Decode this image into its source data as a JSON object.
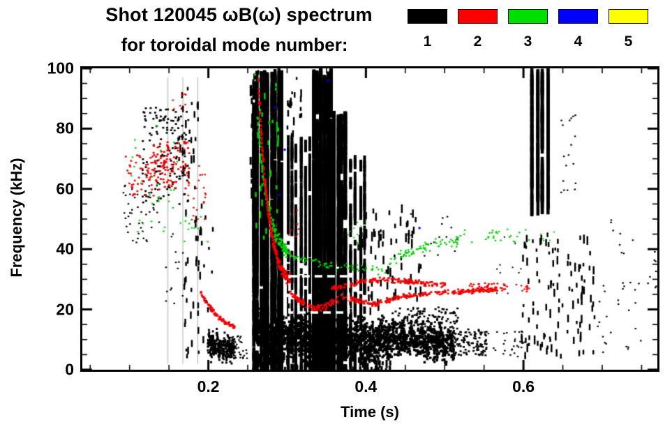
{
  "header": {
    "title_line1": "Shot 120045 ωB(ω) spectrum",
    "title_line2": "for toroidal mode number:"
  },
  "legend": {
    "entries": [
      {
        "label": "1",
        "color": "#000000"
      },
      {
        "label": "2",
        "color": "#ff0000"
      },
      {
        "label": "3",
        "color": "#00e000"
      },
      {
        "label": "4",
        "color": "#0000ff"
      },
      {
        "label": "5",
        "color": "#ffff00"
      }
    ]
  },
  "axes": {
    "xlabel": "Time (s)",
    "ylabel": "Frequency (kHz)",
    "xtick_labels": [
      "0.2",
      "0.4",
      "0.6"
    ],
    "ytick_labels": [
      "0",
      "20",
      "40",
      "60",
      "80",
      "100"
    ]
  },
  "chart_data": {
    "type": "scatter",
    "subtype": "spectrogram",
    "title": "Shot 120045 ωB(ω) spectrum for toroidal mode number",
    "xlabel": "Time (s)",
    "ylabel": "Frequency (kHz)",
    "xlim": [
      0.04,
      0.77
    ],
    "ylim": [
      0,
      100
    ],
    "xticks_labeled": [
      0.2,
      0.4,
      0.6
    ],
    "xticks_minor_step": 0.05,
    "yticks_labeled": [
      0,
      20,
      40,
      60,
      80,
      100
    ],
    "yticks_minor_step": 5,
    "grid": false,
    "legend_position": "top-right",
    "background_lines": [
      0.148,
      0.167,
      0.186
    ],
    "annotation_box": {
      "t0": 0.303,
      "t1": 0.378,
      "f0": 19,
      "f1": 31,
      "style": "dashed",
      "color": "#ffffff"
    },
    "series": [
      {
        "name": "n=1",
        "mode": 1,
        "color": "#000000",
        "clusters": [
          {
            "kind": "dots",
            "t": [
              0.09,
              0.14
            ],
            "f": [
              42,
              62
            ],
            "n": 45,
            "size": 2.5
          },
          {
            "kind": "dots",
            "t": [
              0.115,
              0.175
            ],
            "f": [
              55,
              88
            ],
            "n": 150,
            "size": 3
          },
          {
            "kind": "vdash",
            "t": [
              0.16,
              0.186
            ],
            "f": [
              58,
              96
            ],
            "n": 28,
            "len": [
              4,
              12
            ],
            "w": 2.5
          },
          {
            "kind": "vdash",
            "t": [
              0.168,
              0.205
            ],
            "f": [
              4,
              56
            ],
            "n": 45,
            "len": [
              4,
              11
            ],
            "w": 2.5
          },
          {
            "kind": "dots",
            "t": [
              0.145,
              0.168
            ],
            "f": [
              20,
              46
            ],
            "n": 14,
            "size": 2.5
          },
          {
            "kind": "band",
            "t": [
              0.198,
              0.232
            ],
            "f": [
              9,
              7
            ],
            "hw": 4,
            "n": 300,
            "size": 3
          },
          {
            "kind": "dots",
            "t": [
              0.225,
              0.248
            ],
            "f": [
              4,
              12
            ],
            "n": 40,
            "size": 2.5
          },
          {
            "kind": "vdash",
            "t": [
              0.252,
              0.262
            ],
            "f": [
              55,
              100
            ],
            "n": 35,
            "len": [
              5,
              16
            ],
            "w": 3
          },
          {
            "kind": "cols",
            "t": [
              0.255,
              0.296
            ],
            "f": [
              0,
              100
            ],
            "cols": 9,
            "per": 110,
            "w": 4.5,
            "len": [
              6,
              28
            ]
          },
          {
            "kind": "cols",
            "t": [
              0.298,
              0.331
            ],
            "f": [
              0,
              78
            ],
            "cols": 6,
            "per": 55,
            "w": 4,
            "len": [
              5,
              22
            ]
          },
          {
            "kind": "vdash",
            "t": [
              0.298,
              0.318
            ],
            "f": [
              76,
              100
            ],
            "n": 22,
            "len": [
              4,
              12
            ],
            "w": 2.5
          },
          {
            "kind": "cols",
            "t": [
              0.332,
              0.358
            ],
            "f": [
              0,
              100
            ],
            "cols": 6,
            "per": 150,
            "w": 5,
            "len": [
              8,
              30
            ]
          },
          {
            "kind": "cols",
            "t": [
              0.358,
              0.376
            ],
            "f": [
              0,
              86
            ],
            "cols": 4,
            "per": 100,
            "w": 5,
            "len": [
              8,
              28
            ]
          },
          {
            "kind": "cols",
            "t": [
              0.378,
              0.402
            ],
            "f": [
              0,
              72
            ],
            "cols": 4,
            "per": 45,
            "w": 4,
            "len": [
              5,
              20
            ]
          },
          {
            "kind": "band",
            "t": [
              0.258,
              0.43
            ],
            "f": [
              12,
              10
            ],
            "hw": 7,
            "n": 1700,
            "size": 3.5
          },
          {
            "kind": "vdash",
            "t": [
              0.26,
              0.43
            ],
            "f": [
              0,
              6
            ],
            "n": 130,
            "len": [
              4,
              12
            ],
            "w": 3
          },
          {
            "kind": "band",
            "t": [
              0.43,
              0.51
            ],
            "f": [
              11,
              9
            ],
            "hw": 5.5,
            "n": 620,
            "size": 3.5
          },
          {
            "kind": "dots",
            "t": [
              0.43,
              0.52
            ],
            "f": [
              14,
              21
            ],
            "n": 110,
            "size": 3
          },
          {
            "kind": "dots",
            "t": [
              0.505,
              0.552
            ],
            "f": [
              5,
              14
            ],
            "n": 110,
            "size": 3
          },
          {
            "kind": "vdash",
            "t": [
              0.385,
              0.47
            ],
            "f": [
              16,
              55
            ],
            "n": 85,
            "len": [
              4,
              14
            ],
            "w": 2.5
          },
          {
            "kind": "dots",
            "t": [
              0.445,
              0.52
            ],
            "f": [
              38,
              52
            ],
            "n": 14,
            "size": 2.5
          },
          {
            "kind": "dots",
            "t": [
              0.552,
              0.602
            ],
            "f": [
              4,
              13
            ],
            "n": 30,
            "size": 2.5
          },
          {
            "kind": "dots",
            "t": [
              0.56,
              0.6
            ],
            "f": [
              24,
              45
            ],
            "n": 10,
            "size": 2
          },
          {
            "kind": "vdash",
            "t": [
              0.596,
              0.69
            ],
            "f": [
              4,
              46
            ],
            "n": 110,
            "len": [
              4,
              13
            ],
            "w": 2.5
          },
          {
            "kind": "cols",
            "t": [
              0.608,
              0.634
            ],
            "f": [
              55,
              100
            ],
            "cols": 4,
            "per": 70,
            "w": 4.5,
            "len": [
              6,
              24
            ]
          },
          {
            "kind": "dots",
            "t": [
              0.645,
              0.668
            ],
            "f": [
              58,
              86
            ],
            "n": 18,
            "size": 2.5
          },
          {
            "kind": "dots",
            "t": [
              0.69,
              0.748
            ],
            "f": [
              6,
              30
            ],
            "n": 26,
            "size": 2.5
          },
          {
            "kind": "dots",
            "t": [
              0.705,
              0.742
            ],
            "f": [
              38,
              50
            ],
            "n": 8,
            "size": 2.5
          },
          {
            "kind": "dots",
            "t": [
              0.752,
              0.768
            ],
            "f": [
              25,
              46
            ],
            "n": 8,
            "size": 2.5
          }
        ]
      },
      {
        "name": "n=3",
        "mode": 3,
        "color": "#00d000",
        "clusters": [
          {
            "kind": "dots",
            "t": [
              0.1,
              0.165
            ],
            "f": [
              45,
              82
            ],
            "n": 30,
            "size": 2.5
          },
          {
            "kind": "dots",
            "t": [
              0.168,
              0.2
            ],
            "f": [
              38,
              52
            ],
            "n": 10,
            "size": 2.5
          },
          {
            "kind": "chirp",
            "t": [
              0.257,
              0.3
            ],
            "f": [
              100,
              36
            ],
            "k": 3.0,
            "jit": 3,
            "n": 130,
            "size": 3
          },
          {
            "kind": "vdash",
            "t": [
              0.258,
              0.288
            ],
            "f": [
              42,
              96
            ],
            "n": 30,
            "len": [
              4,
              10
            ],
            "w": 2.5
          },
          {
            "kind": "path",
            "pts": [
              [
                0.3,
                38
              ],
              [
                0.33,
                36
              ],
              [
                0.36,
                34.5
              ],
              [
                0.395,
                33.5
              ],
              [
                0.425,
                33
              ]
            ],
            "jit": 1.6,
            "n": 70,
            "size": 2.5
          },
          {
            "kind": "path",
            "pts": [
              [
                0.428,
                36
              ],
              [
                0.448,
                39
              ],
              [
                0.468,
                41
              ],
              [
                0.492,
                42
              ],
              [
                0.52,
                43
              ]
            ],
            "jit": 2.2,
            "n": 70,
            "size": 2.5
          },
          {
            "kind": "dots",
            "t": [
              0.52,
              0.608
            ],
            "f": [
              42,
              47
            ],
            "n": 26,
            "size": 2.5
          },
          {
            "kind": "dots",
            "t": [
              0.36,
              0.4
            ],
            "f": [
              42,
              50
            ],
            "n": 10,
            "size": 2
          },
          {
            "kind": "dots",
            "t": [
              0.612,
              0.64
            ],
            "f": [
              43,
              47
            ],
            "n": 5,
            "size": 2
          }
        ]
      },
      {
        "name": "n=4",
        "mode": 4,
        "color": "#0000ee",
        "clusters": [
          {
            "kind": "points",
            "pts": [
              [
                0.285,
                87
              ],
              [
                0.297,
                73
              ],
              [
                0.352,
                96
              ],
              [
                0.468,
                47
              ],
              [
                0.29,
                58
              ]
            ],
            "size": 3
          }
        ]
      },
      {
        "name": "n=5",
        "mode": 5,
        "color": "#ffff00",
        "clusters": []
      },
      {
        "name": "n=2",
        "mode": 2,
        "color": "#ee0000",
        "clusters": [
          {
            "kind": "dots",
            "t": [
              0.093,
              0.135
            ],
            "f": [
              58,
              72
            ],
            "n": 55,
            "size": 2.8
          },
          {
            "kind": "dots",
            "t": [
              0.128,
              0.175
            ],
            "f": [
              60,
              76
            ],
            "n": 95,
            "size": 3
          },
          {
            "kind": "dots",
            "t": [
              0.152,
              0.172
            ],
            "f": [
              85,
              92
            ],
            "n": 8,
            "size": 2.5
          },
          {
            "kind": "dots",
            "t": [
              0.172,
              0.196
            ],
            "f": [
              48,
              68
            ],
            "n": 22,
            "size": 2.5
          },
          {
            "kind": "path",
            "pts": [
              [
                0.188,
                26
              ],
              [
                0.198,
                22
              ],
              [
                0.208,
                18.5
              ],
              [
                0.22,
                16
              ],
              [
                0.232,
                14.5
              ]
            ],
            "jit": 0.9,
            "n": 85,
            "size": 3
          },
          {
            "kind": "chirp",
            "t": [
              0.262,
              0.303
            ],
            "f": [
              97,
              27
            ],
            "k": 3.2,
            "jit": 2.4,
            "n": 240,
            "size": 3
          },
          {
            "kind": "path",
            "pts": [
              [
                0.302,
                26
              ],
              [
                0.316,
                23
              ],
              [
                0.331,
                20.5
              ],
              [
                0.346,
                21
              ],
              [
                0.361,
                23.5
              ],
              [
                0.376,
                24.5
              ],
              [
                0.391,
                23
              ],
              [
                0.402,
                22.5
              ]
            ],
            "jit": 1.2,
            "n": 150,
            "size": 3
          },
          {
            "kind": "path",
            "pts": [
              [
                0.355,
                27
              ],
              [
                0.376,
                28.5
              ],
              [
                0.396,
                29.5
              ],
              [
                0.416,
                30
              ],
              [
                0.436,
                30
              ],
              [
                0.456,
                29.5
              ],
              [
                0.476,
                29
              ],
              [
                0.5,
                28.5
              ]
            ],
            "jit": 1.0,
            "n": 160,
            "size": 3
          },
          {
            "kind": "path",
            "pts": [
              [
                0.402,
                21.5
              ],
              [
                0.422,
                23
              ],
              [
                0.442,
                24.5
              ],
              [
                0.462,
                25
              ],
              [
                0.482,
                25.5
              ],
              [
                0.502,
                26
              ],
              [
                0.532,
                26.5
              ],
              [
                0.565,
                27
              ]
            ],
            "jit": 1.0,
            "n": 180,
            "size": 3
          },
          {
            "kind": "dots",
            "t": [
              0.53,
              0.578
            ],
            "f": [
              26,
              29
            ],
            "n": 45,
            "size": 2.8
          },
          {
            "kind": "dots",
            "t": [
              0.578,
              0.608
            ],
            "f": [
              26,
              28.5
            ],
            "n": 12,
            "size": 2.5
          },
          {
            "kind": "dots",
            "t": [
              0.292,
              0.322
            ],
            "f": [
              44,
              54
            ],
            "n": 10,
            "size": 2.5
          }
        ]
      }
    ]
  }
}
